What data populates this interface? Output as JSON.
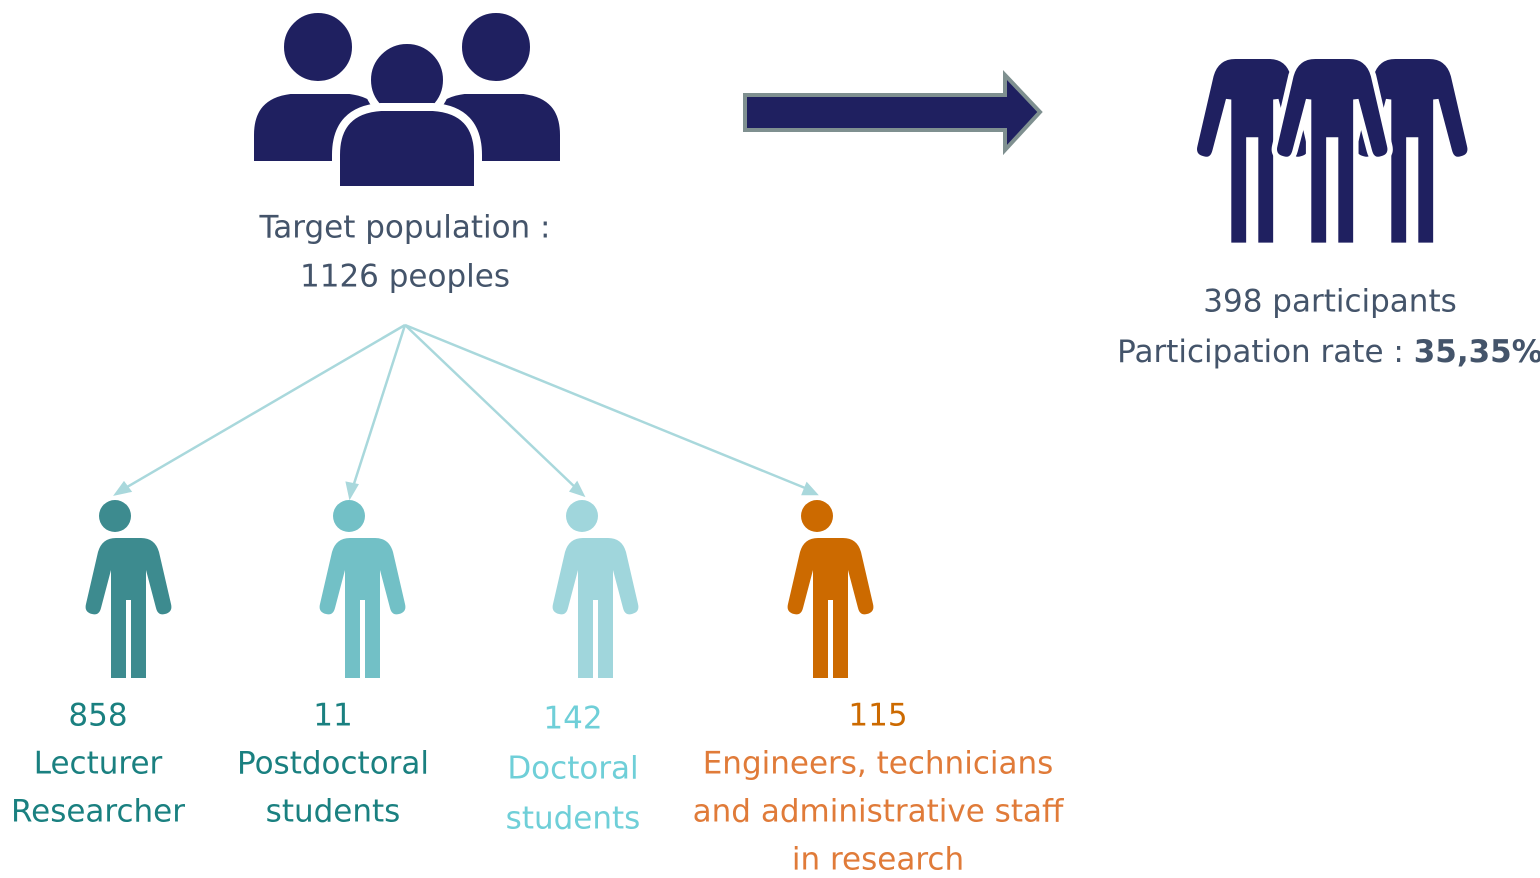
{
  "target": {
    "line1": "Target population :",
    "line2": "1126 peoples"
  },
  "result": {
    "line1": "398 participants",
    "rate_label": "Participation rate :",
    "rate_value": "35,35%"
  },
  "groups": [
    {
      "count": "858",
      "label_lines": [
        "Lecturer",
        "Researcher"
      ]
    },
    {
      "count": "11",
      "label_lines": [
        "Postdoctoral",
        "students"
      ]
    },
    {
      "count": "142",
      "label_lines": [
        "Doctoral",
        "students"
      ]
    },
    {
      "count": "115",
      "label_lines": [
        "Engineers, technicians",
        "and administrative staff",
        "in research"
      ]
    }
  ]
}
